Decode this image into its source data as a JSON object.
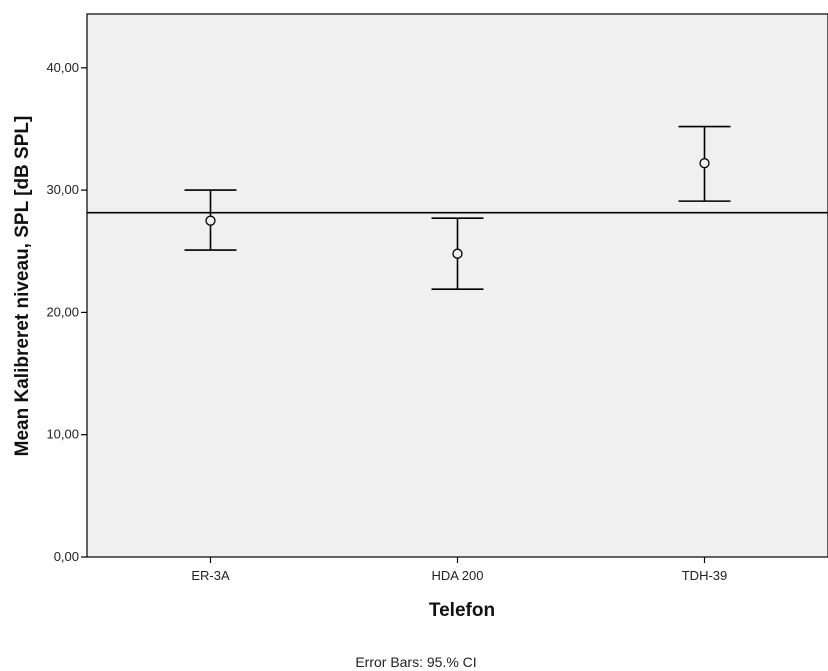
{
  "chart_data": {
    "type": "scatter",
    "subtype": "error-bar",
    "categories": [
      "ER-3A",
      "HDA 200",
      "TDH-39"
    ],
    "series": [
      {
        "means": [
          27.5,
          24.8,
          32.2
        ],
        "ci_lower": [
          25.1,
          21.9,
          29.1
        ],
        "ci_upper": [
          30.0,
          27.7,
          35.2
        ]
      }
    ],
    "reference_line": 28.15,
    "xlabel": "Telefon",
    "ylabel": "Mean Kalibreret niveau, SPL [dB SPL]",
    "ylim": [
      0,
      44.4
    ],
    "yticks": [
      "0,00",
      "10,00",
      "20,00",
      "30,00",
      "40,00"
    ],
    "ytick_values": [
      0,
      10,
      20,
      30,
      40
    ],
    "footnote": "Error Bars: 95.% CI",
    "grid": false,
    "plot_background": "#f0f0f0",
    "line_color": "#000000"
  }
}
